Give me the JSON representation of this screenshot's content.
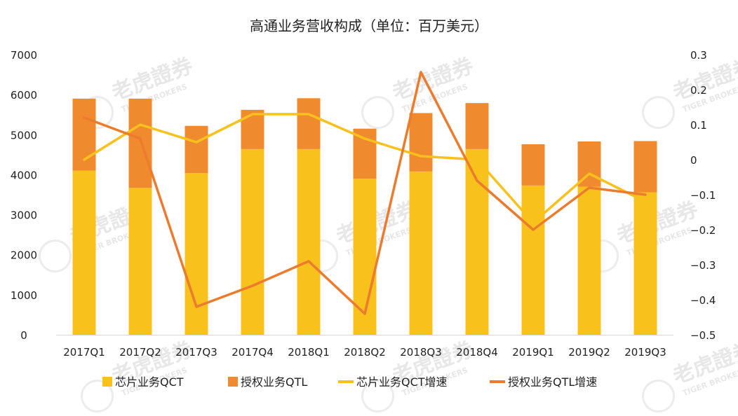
{
  "chart_data": {
    "type": "bar",
    "title": "高通业务营收构成（单位：百万美元）",
    "categories": [
      "2017Q1",
      "2017Q2",
      "2017Q3",
      "2017Q4",
      "2018Q1",
      "2018Q2",
      "2018Q3",
      "2018Q4",
      "2019Q1",
      "2019Q2",
      "2019Q3"
    ],
    "stacked": true,
    "bar_series": [
      {
        "name": "芯片业务QCT",
        "color": "#F9C11C",
        "values": [
          4100,
          3670,
          4040,
          4640,
          4640,
          3900,
          4080,
          4640,
          3730,
          3700,
          3560
        ]
      },
      {
        "name": "授权业务QTL",
        "color": "#F08A2E",
        "values": [
          1800,
          2230,
          1180,
          980,
          1270,
          1250,
          1460,
          1150,
          1030,
          1130,
          1280
        ]
      }
    ],
    "line_series": [
      {
        "name": "芯片业务QCT增速",
        "color": "#F9C11C",
        "axis": "right",
        "values": [
          0.0,
          0.1,
          0.05,
          0.13,
          0.13,
          0.06,
          0.01,
          0.0,
          -0.18,
          -0.04,
          -0.12
        ]
      },
      {
        "name": "授权业务QTL增速",
        "color": "#EC7B2E",
        "axis": "right",
        "values": [
          0.12,
          0.06,
          -0.42,
          -0.36,
          -0.29,
          -0.44,
          0.25,
          -0.06,
          -0.2,
          -0.08,
          -0.1
        ]
      }
    ],
    "y_left": {
      "range": [
        0,
        7000
      ],
      "ticks": [
        "0",
        "1000",
        "2000",
        "3000",
        "4000",
        "5000",
        "6000",
        "7000"
      ]
    },
    "y_right": {
      "range": [
        -0.5,
        0.3
      ],
      "ticks": [
        "−0.5",
        "−0.4",
        "−0.3",
        "−0.2",
        "−0.1",
        "0",
        "0.1",
        "0.2",
        "0.3"
      ]
    },
    "grid": false,
    "legend_position": "bottom"
  },
  "watermark": {
    "name": "老虎證券",
    "subtitle": "TIGER BROKERS"
  }
}
